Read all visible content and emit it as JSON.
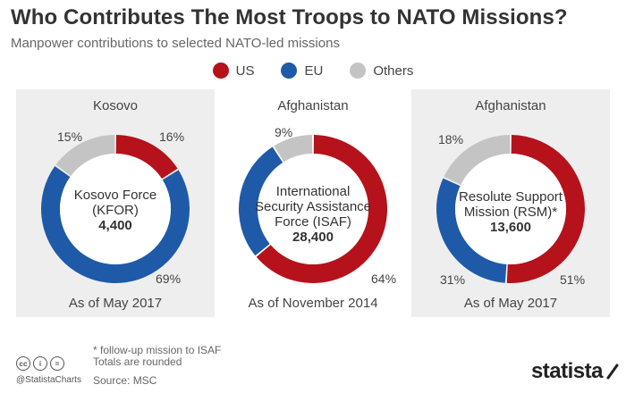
{
  "header": {
    "title": "Who Contributes The Most Troops to NATO Missions?",
    "subtitle": "Manpower contributions to selected NATO-led missions"
  },
  "legend": [
    {
      "label": "US",
      "color": "#b5121b"
    },
    {
      "label": "EU",
      "color": "#1f5aa8"
    },
    {
      "label": "Others",
      "color": "#c4c4c4"
    }
  ],
  "chart_data": [
    {
      "type": "pie",
      "title": "Kosovo",
      "center_label": [
        "Kosovo Force",
        "(KFOR)"
      ],
      "center_value": "4,400",
      "date": "As of May 2017",
      "categories": [
        "US",
        "EU",
        "Others"
      ],
      "values": [
        16,
        69,
        15
      ],
      "labels": [
        "16%",
        "69%",
        "15%"
      ]
    },
    {
      "type": "pie",
      "title": "Afghanistan",
      "center_label": [
        "International",
        "Security Assistance",
        "Force (ISAF)"
      ],
      "center_value": "28,400",
      "date": "As of November 2014",
      "categories": [
        "US",
        "EU",
        "Others"
      ],
      "values": [
        64,
        27,
        9
      ],
      "labels": [
        "64%",
        "",
        "9%"
      ]
    },
    {
      "type": "pie",
      "title": "Afghanistan",
      "center_label": [
        "Resolute Support",
        "Mission (RSM)*"
      ],
      "center_value": "13,600",
      "date": "As of May 2017",
      "categories": [
        "US",
        "EU",
        "Others"
      ],
      "values": [
        51,
        31,
        18
      ],
      "labels": [
        "51%",
        "31%",
        "18%"
      ]
    }
  ],
  "footer": {
    "note1": "* follow-up mission to ISAF",
    "note2": "Totals are rounded",
    "source": "Source: MSC",
    "handle": "@StatistaCharts",
    "brand": "statista",
    "cc_icons": [
      "cc",
      "i",
      "="
    ]
  }
}
